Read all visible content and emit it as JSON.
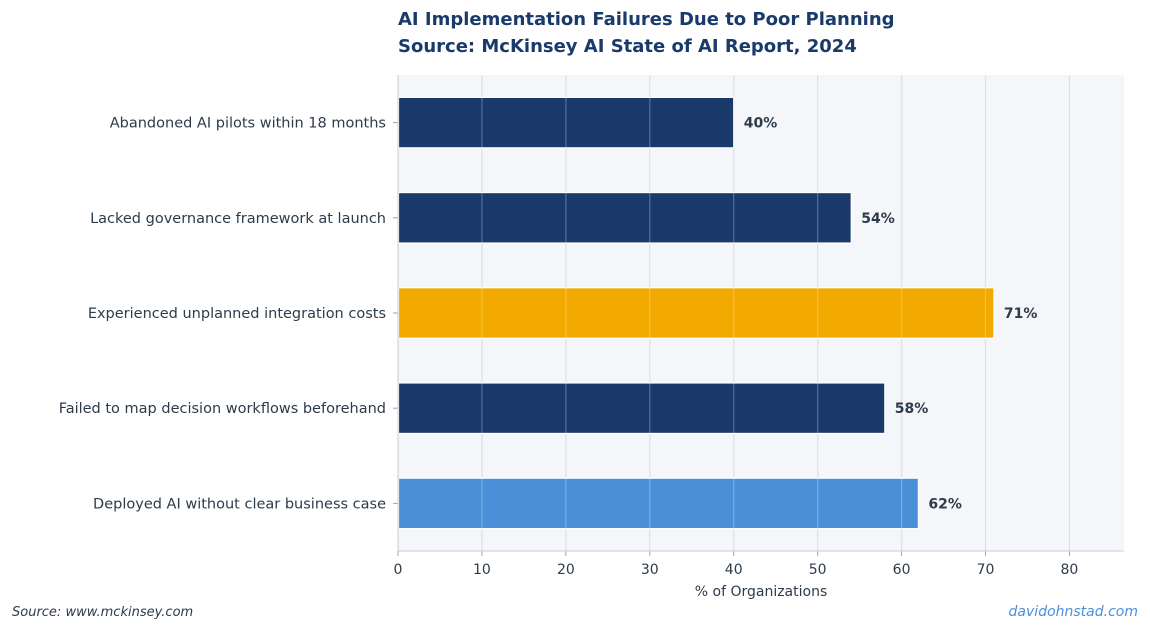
{
  "chart_data": {
    "type": "bar",
    "orientation": "horizontal",
    "title": "AI Implementation Failures Due to Poor Planning",
    "subtitle": "Source: McKinsey AI State of AI Report, 2024",
    "xlabel": "% of Organizations",
    "ylabel": "",
    "xlim": [
      0,
      86.5
    ],
    "xticks": [
      0,
      10,
      20,
      30,
      40,
      50,
      60,
      70,
      80
    ],
    "grid": "vertical",
    "categories": [
      "Abandoned AI pilots within 18 months",
      "Lacked governance framework at launch",
      "Experienced unplanned integration costs",
      "Failed to map decision workflows beforehand",
      "Deployed AI without clear business case"
    ],
    "values": [
      40,
      54,
      71,
      58,
      62
    ],
    "value_labels": [
      "40%",
      "54%",
      "71%",
      "58%",
      "62%"
    ],
    "bar_colors": [
      "#1a3a6b",
      "#1a3a6b",
      "#f2a900",
      "#1a3a6b",
      "#4a90d9"
    ]
  },
  "footer": {
    "source": "Source: www.mckinsey.com",
    "credit": "davidohnstad.com"
  },
  "colors": {
    "plot_background": "#f4f6fa",
    "grid": "#dde2ea",
    "text": "#2d3b4a",
    "title": "#1a3a6b"
  }
}
